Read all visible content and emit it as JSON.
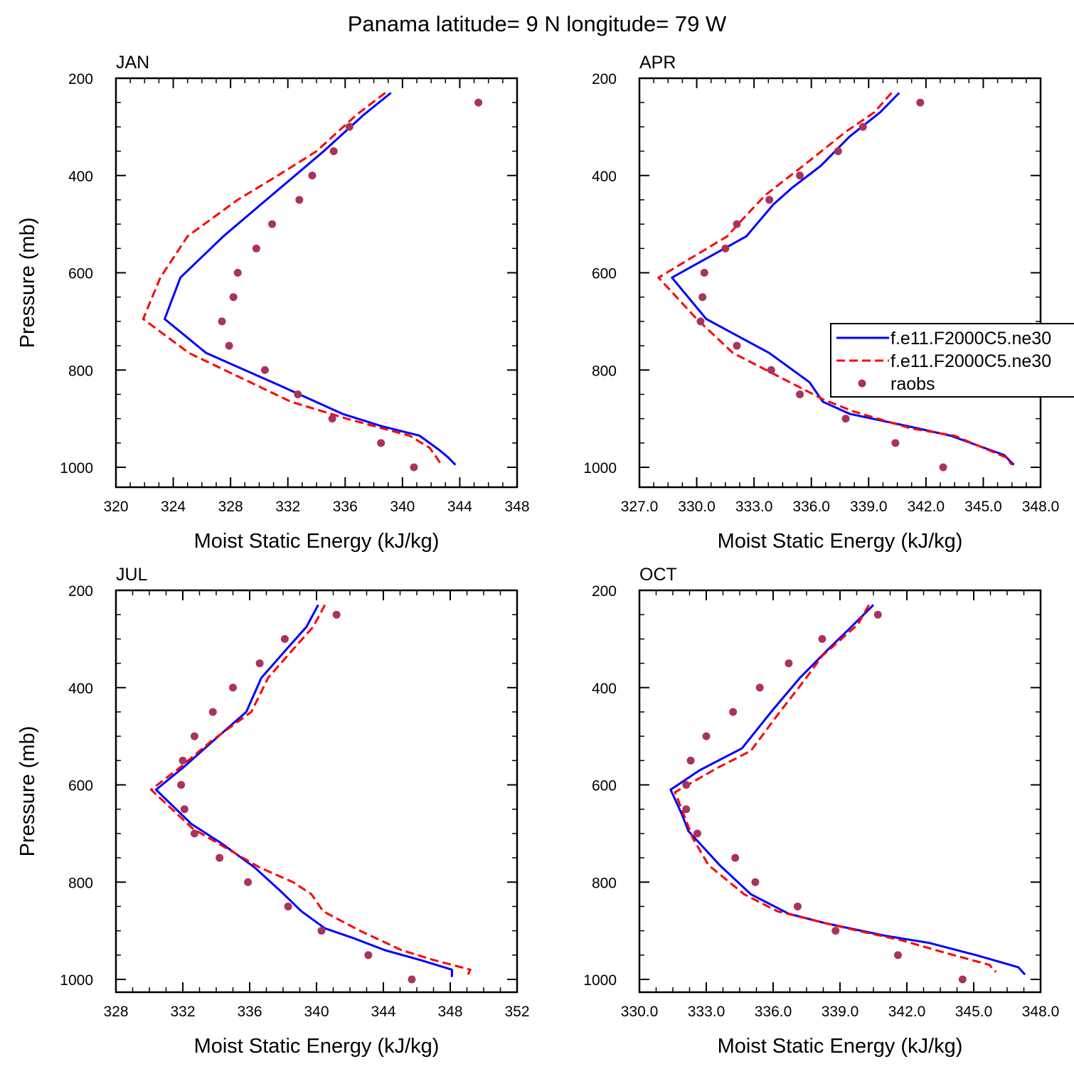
{
  "title": "Panama  latitude= 9 N longitude= 79 W",
  "colors": {
    "model_a": "#0000ff",
    "model_b": "#ff0000",
    "obs": "#a8345c"
  },
  "legend": {
    "placement": "right-center",
    "entries": [
      {
        "label": "f.e11.F2000C5.ne30",
        "style": "solid-line",
        "color": "#0000ff"
      },
      {
        "label": "f.e11.F2000C5.ne30",
        "style": "dashed-line",
        "color": "#ff0000"
      },
      {
        "label": "raobs",
        "style": "dot",
        "color": "#a8345c"
      }
    ]
  },
  "chart_data": [
    {
      "type": "line",
      "title": "JAN",
      "xlabel": "Moist Static Energy (kJ/kg)",
      "ylabel": "Pressure (mb)",
      "xlim": [
        320,
        348
      ],
      "ylim": [
        200,
        1000
      ],
      "y_inverted": true,
      "xticks": [
        320,
        324,
        328,
        332,
        336,
        340,
        344,
        348
      ],
      "xtick_labels": [
        "320",
        "324",
        "328",
        "332",
        "336",
        "340",
        "344",
        "348"
      ],
      "yticks": [
        200,
        400,
        600,
        800,
        1000
      ],
      "ytick_labels": [
        "200",
        "400",
        "600",
        "800",
        "1000"
      ],
      "series": [
        {
          "name": "f.e11.F2000C5.ne30",
          "style": "solid",
          "color": "#0000ff",
          "points": [
            [
              339.2,
              230
            ],
            [
              337.3,
              275
            ],
            [
              334.5,
              350
            ],
            [
              332.5,
              400
            ],
            [
              330.5,
              450
            ],
            [
              327.5,
              525
            ],
            [
              324.5,
              610
            ],
            [
              323.4,
              695
            ],
            [
              326.3,
              765
            ],
            [
              331.3,
              830
            ],
            [
              335.8,
              890
            ],
            [
              338.5,
              915
            ],
            [
              341.2,
              935
            ],
            [
              342.6,
              965
            ],
            [
              343.2,
              980
            ],
            [
              343.7,
              995
            ]
          ]
        },
        {
          "name": "f.e11.F2000C5.ne30",
          "style": "dashed",
          "color": "#ff0000",
          "points": [
            [
              338.8,
              230
            ],
            [
              336.8,
              275
            ],
            [
              334.0,
              350
            ],
            [
              331.3,
              400
            ],
            [
              328.5,
              450
            ],
            [
              325.0,
              525
            ],
            [
              323.1,
              610
            ],
            [
              321.9,
              695
            ],
            [
              325.1,
              765
            ],
            [
              332.2,
              865
            ],
            [
              336.1,
              900
            ],
            [
              340.5,
              935
            ],
            [
              341.9,
              960
            ],
            [
              342.5,
              985
            ],
            [
              342.7,
              995
            ]
          ]
        },
        {
          "name": "raobs",
          "style": "dots",
          "color": "#a8345c",
          "points": [
            [
              345.3,
              250
            ],
            [
              336.3,
              300
            ],
            [
              335.2,
              350
            ],
            [
              333.7,
              400
            ],
            [
              332.8,
              450
            ],
            [
              330.9,
              500
            ],
            [
              329.8,
              550
            ],
            [
              328.5,
              600
            ],
            [
              328.2,
              650
            ],
            [
              327.4,
              700
            ],
            [
              327.9,
              750
            ],
            [
              330.4,
              800
            ],
            [
              332.7,
              850
            ],
            [
              335.1,
              900
            ],
            [
              338.5,
              950
            ],
            [
              340.8,
              1000
            ]
          ]
        }
      ]
    },
    {
      "type": "line",
      "title": "APR",
      "xlabel": "Moist Static Energy (kJ/kg)",
      "ylabel": "",
      "xlim": [
        327.0,
        348.0
      ],
      "ylim": [
        200,
        1000
      ],
      "y_inverted": true,
      "xticks": [
        327,
        330,
        333,
        336,
        339,
        342,
        345,
        348
      ],
      "xtick_labels": [
        "327.0",
        "330.0",
        "333.0",
        "336.0",
        "339.0",
        "342.0",
        "345.0",
        "348.0"
      ],
      "yticks": [
        200,
        400,
        600,
        800,
        1000
      ],
      "ytick_labels": [
        "200",
        "400",
        "600",
        "800",
        "1000"
      ],
      "series": [
        {
          "name": "f.e11.F2000C5.ne30",
          "style": "solid",
          "color": "#0000ff",
          "points": [
            [
              340.6,
              230
            ],
            [
              339.6,
              270
            ],
            [
              338.0,
              320
            ],
            [
              336.5,
              380
            ],
            [
              335.0,
              425
            ],
            [
              334.0,
              460
            ],
            [
              332.6,
              525
            ],
            [
              328.7,
              610
            ],
            [
              330.5,
              695
            ],
            [
              333.8,
              765
            ],
            [
              335.9,
              825
            ],
            [
              336.6,
              865
            ],
            [
              338.0,
              890
            ],
            [
              341.0,
              915
            ],
            [
              343.3,
              935
            ],
            [
              346.1,
              975
            ],
            [
              346.6,
              995
            ]
          ]
        },
        {
          "name": "f.e11.F2000C5.ne30",
          "style": "dashed",
          "color": "#ff0000",
          "points": [
            [
              340.2,
              230
            ],
            [
              339.3,
              270
            ],
            [
              337.8,
              310
            ],
            [
              335.9,
              370
            ],
            [
              333.6,
              440
            ],
            [
              332.4,
              490
            ],
            [
              331.6,
              525
            ],
            [
              328.0,
              610
            ],
            [
              330.0,
              695
            ],
            [
              331.9,
              765
            ],
            [
              336.6,
              860
            ],
            [
              338.2,
              885
            ],
            [
              341.2,
              920
            ],
            [
              343.5,
              935
            ],
            [
              346.2,
              980
            ],
            [
              346.5,
              995
            ]
          ]
        },
        {
          "name": "raobs",
          "style": "dots",
          "color": "#a8345c",
          "points": [
            [
              341.7,
              250
            ],
            [
              338.7,
              300
            ],
            [
              337.4,
              350
            ],
            [
              335.4,
              400
            ],
            [
              333.8,
              450
            ],
            [
              332.1,
              500
            ],
            [
              331.5,
              550
            ],
            [
              330.4,
              600
            ],
            [
              330.3,
              650
            ],
            [
              330.2,
              700
            ],
            [
              332.1,
              750
            ],
            [
              333.9,
              800
            ],
            [
              335.4,
              850
            ],
            [
              337.8,
              900
            ],
            [
              340.4,
              950
            ],
            [
              342.9,
              1000
            ]
          ]
        }
      ]
    },
    {
      "type": "line",
      "title": "JUL",
      "xlabel": "Moist Static Energy (kJ/kg)",
      "ylabel": "Pressure (mb)",
      "xlim": [
        328,
        352
      ],
      "ylim": [
        200,
        1000
      ],
      "y_inverted": true,
      "xticks": [
        328,
        332,
        336,
        340,
        344,
        348,
        352
      ],
      "xtick_labels": [
        "328",
        "332",
        "336",
        "340",
        "344",
        "348",
        "352"
      ],
      "yticks": [
        200,
        400,
        600,
        800,
        1000
      ],
      "ytick_labels": [
        "200",
        "400",
        "600",
        "800",
        "1000"
      ],
      "series": [
        {
          "name": "f.e11.F2000C5.ne30",
          "style": "solid",
          "color": "#0000ff",
          "points": [
            [
              340.1,
              230
            ],
            [
              339.4,
              275
            ],
            [
              338.1,
              325
            ],
            [
              336.7,
              380
            ],
            [
              335.8,
              450
            ],
            [
              333.8,
              510
            ],
            [
              332.0,
              565
            ],
            [
              330.4,
              610
            ],
            [
              331.0,
              630
            ],
            [
              332.5,
              680
            ],
            [
              334.3,
              720
            ],
            [
              336.3,
              770
            ],
            [
              337.9,
              820
            ],
            [
              339.1,
              860
            ],
            [
              340.5,
              895
            ],
            [
              342.2,
              915
            ],
            [
              344.1,
              940
            ],
            [
              346.2,
              960
            ],
            [
              348.1,
              980
            ],
            [
              348.1,
              995
            ]
          ]
        },
        {
          "name": "f.e11.F2000C5.ne30",
          "style": "dashed",
          "color": "#ff0000",
          "points": [
            [
              340.5,
              230
            ],
            [
              339.8,
              275
            ],
            [
              338.5,
              325
            ],
            [
              337.1,
              380
            ],
            [
              336.1,
              450
            ],
            [
              333.7,
              510
            ],
            [
              331.8,
              565
            ],
            [
              330.1,
              610
            ],
            [
              331.2,
              645
            ],
            [
              332.6,
              690
            ],
            [
              334.6,
              730
            ],
            [
              336.6,
              770
            ],
            [
              338.6,
              800
            ],
            [
              339.7,
              825
            ],
            [
              340.4,
              860
            ],
            [
              342.6,
              900
            ],
            [
              345.1,
              940
            ],
            [
              347.0,
              960
            ],
            [
              349.2,
              980
            ],
            [
              349.0,
              995
            ]
          ]
        },
        {
          "name": "raobs",
          "style": "dots",
          "color": "#a8345c",
          "points": [
            [
              341.2,
              250
            ],
            [
              338.1,
              300
            ],
            [
              336.6,
              350
            ],
            [
              335.0,
              400
            ],
            [
              333.8,
              450
            ],
            [
              332.7,
              500
            ],
            [
              332.0,
              550
            ],
            [
              331.9,
              600
            ],
            [
              332.1,
              650
            ],
            [
              332.7,
              700
            ],
            [
              334.2,
              750
            ],
            [
              335.9,
              800
            ],
            [
              338.3,
              850
            ],
            [
              340.3,
              900
            ],
            [
              343.1,
              950
            ],
            [
              345.7,
              1000
            ]
          ]
        }
      ]
    },
    {
      "type": "line",
      "title": "OCT",
      "xlabel": "Moist Static Energy (kJ/kg)",
      "ylabel": "",
      "xlim": [
        330.0,
        348.0
      ],
      "ylim": [
        200,
        1000
      ],
      "y_inverted": true,
      "xticks": [
        330,
        333,
        336,
        339,
        342,
        345,
        348
      ],
      "xtick_labels": [
        "330.0",
        "333.0",
        "336.0",
        "339.0",
        "342.0",
        "345.0",
        "348.0"
      ],
      "yticks": [
        200,
        400,
        600,
        800,
        1000
      ],
      "ytick_labels": [
        "200",
        "400",
        "600",
        "800",
        "1000"
      ],
      "series": [
        {
          "name": "f.e11.F2000C5.ne30",
          "style": "solid",
          "color": "#0000ff",
          "points": [
            [
              340.5,
              230
            ],
            [
              339.4,
              280
            ],
            [
              338.5,
              320
            ],
            [
              337.2,
              380
            ],
            [
              336.0,
              445
            ],
            [
              334.6,
              525
            ],
            [
              332.7,
              570
            ],
            [
              331.4,
              610
            ],
            [
              331.9,
              660
            ],
            [
              332.2,
              695
            ],
            [
              333.6,
              765
            ],
            [
              335.0,
              825
            ],
            [
              336.7,
              865
            ],
            [
              338.4,
              885
            ],
            [
              341.0,
              910
            ],
            [
              343.0,
              925
            ],
            [
              345.1,
              950
            ],
            [
              347.0,
              975
            ],
            [
              347.3,
              990
            ]
          ]
        },
        {
          "name": "f.e11.F2000C5.ne30",
          "style": "dashed",
          "color": "#ff0000",
          "points": [
            [
              340.3,
              230
            ],
            [
              339.8,
              270
            ],
            [
              338.2,
              335
            ],
            [
              337.4,
              385
            ],
            [
              336.3,
              450
            ],
            [
              335.0,
              530
            ],
            [
              333.5,
              565
            ],
            [
              331.6,
              615
            ],
            [
              331.9,
              650
            ],
            [
              332.4,
              710
            ],
            [
              333.1,
              765
            ],
            [
              334.7,
              825
            ],
            [
              336.2,
              860
            ],
            [
              338.4,
              885
            ],
            [
              339.8,
              900
            ],
            [
              341.8,
              920
            ],
            [
              343.7,
              945
            ],
            [
              345.7,
              970
            ],
            [
              346.0,
              985
            ]
          ]
        },
        {
          "name": "raobs",
          "style": "dots",
          "color": "#a8345c",
          "points": [
            [
              340.7,
              250
            ],
            [
              338.2,
              300
            ],
            [
              336.7,
              350
            ],
            [
              335.4,
              400
            ],
            [
              334.2,
              450
            ],
            [
              333.0,
              500
            ],
            [
              332.3,
              550
            ],
            [
              332.1,
              600
            ],
            [
              332.1,
              650
            ],
            [
              332.6,
              700
            ],
            [
              334.3,
              750
            ],
            [
              335.2,
              800
            ],
            [
              337.1,
              850
            ],
            [
              338.8,
              900
            ],
            [
              341.6,
              950
            ],
            [
              344.5,
              1000
            ]
          ]
        }
      ]
    }
  ]
}
